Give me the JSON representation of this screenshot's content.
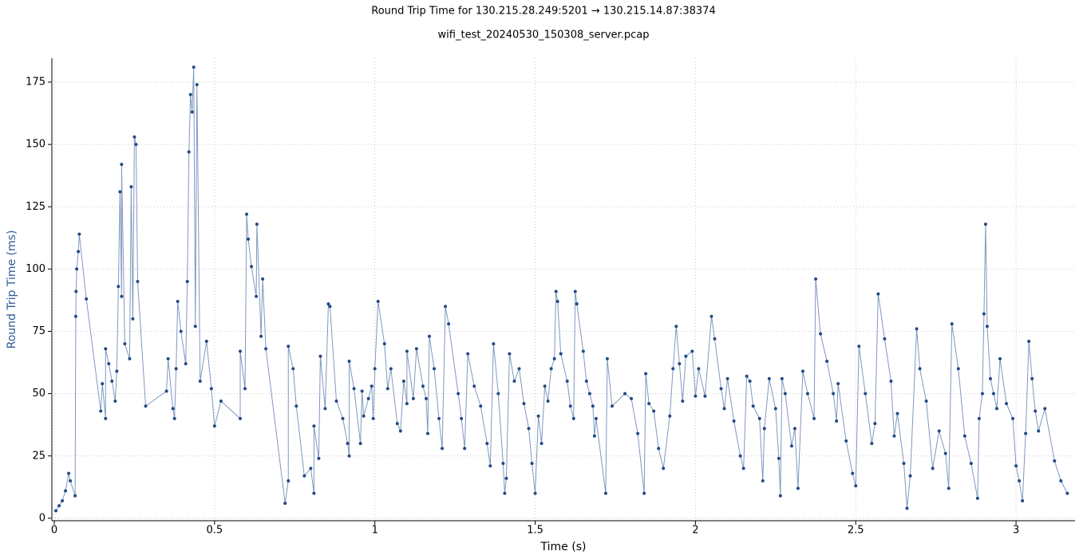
{
  "chart_data": {
    "type": "line",
    "title": "Round Trip Time for 130.215.28.249:5201 → 130.215.14.87:38374",
    "subtitle": "wifi_test_20240530_150308_server.pcap",
    "x_label": "Time (s)",
    "y_label": "Round Trip Time (ms)",
    "xlim": [
      -0.0075,
      3.184
    ],
    "ylim": [
      -1,
      184.6
    ],
    "xticks": [
      0,
      0.5,
      1,
      1.5,
      2,
      2.5,
      3
    ],
    "yticks": [
      0,
      25,
      50,
      75,
      100,
      125,
      150,
      175
    ],
    "grid": true,
    "color": "#234a85",
    "line_color": "#7f98c0",
    "x": [
      0.005,
      0.015,
      0.025,
      0.035,
      0.045,
      0.05,
      0.065,
      0.067,
      0.068,
      0.07,
      0.075,
      0.078,
      0.1,
      0.145,
      0.15,
      0.16,
      0.16,
      0.17,
      0.18,
      0.19,
      0.195,
      0.2,
      0.205,
      0.21,
      0.21,
      0.22,
      0.235,
      0.24,
      0.245,
      0.25,
      0.255,
      0.26,
      0.285,
      0.35,
      0.355,
      0.37,
      0.375,
      0.38,
      0.385,
      0.395,
      0.41,
      0.415,
      0.42,
      0.425,
      0.43,
      0.435,
      0.44,
      0.445,
      0.455,
      0.475,
      0.49,
      0.5,
      0.52,
      0.58,
      0.58,
      0.595,
      0.6,
      0.605,
      0.615,
      0.63,
      0.632,
      0.645,
      0.65,
      0.66,
      0.72,
      0.73,
      0.73,
      0.745,
      0.755,
      0.78,
      0.8,
      0.81,
      0.81,
      0.825,
      0.83,
      0.845,
      0.855,
      0.86,
      0.88,
      0.9,
      0.915,
      0.92,
      0.92,
      0.935,
      0.955,
      0.96,
      0.965,
      0.98,
      0.99,
      0.995,
      1.0,
      1.01,
      1.03,
      1.04,
      1.05,
      1.07,
      1.08,
      1.09,
      1.1,
      1.1,
      1.12,
      1.13,
      1.15,
      1.16,
      1.165,
      1.17,
      1.185,
      1.2,
      1.21,
      1.22,
      1.23,
      1.26,
      1.27,
      1.28,
      1.29,
      1.31,
      1.33,
      1.35,
      1.36,
      1.37,
      1.385,
      1.4,
      1.405,
      1.41,
      1.42,
      1.435,
      1.45,
      1.465,
      1.48,
      1.49,
      1.5,
      1.51,
      1.52,
      1.53,
      1.54,
      1.55,
      1.56,
      1.565,
      1.57,
      1.58,
      1.6,
      1.61,
      1.62,
      1.625,
      1.63,
      1.65,
      1.66,
      1.67,
      1.68,
      1.685,
      1.69,
      1.72,
      1.725,
      1.74,
      1.78,
      1.8,
      1.82,
      1.84,
      1.845,
      1.855,
      1.87,
      1.885,
      1.9,
      1.92,
      1.93,
      1.94,
      1.95,
      1.96,
      1.97,
      1.99,
      2.0,
      2.01,
      2.03,
      2.05,
      2.06,
      2.08,
      2.09,
      2.1,
      2.12,
      2.14,
      2.15,
      2.16,
      2.17,
      2.18,
      2.2,
      2.21,
      2.215,
      2.23,
      2.25,
      2.26,
      2.265,
      2.27,
      2.28,
      2.3,
      2.31,
      2.32,
      2.335,
      2.35,
      2.37,
      2.375,
      2.39,
      2.41,
      2.43,
      2.44,
      2.445,
      2.47,
      2.49,
      2.5,
      2.51,
      2.53,
      2.55,
      2.56,
      2.57,
      2.59,
      2.61,
      2.62,
      2.63,
      2.65,
      2.66,
      2.67,
      2.69,
      2.7,
      2.72,
      2.74,
      2.76,
      2.78,
      2.79,
      2.8,
      2.82,
      2.84,
      2.86,
      2.88,
      2.885,
      2.895,
      2.9,
      2.905,
      2.91,
      2.92,
      2.93,
      2.94,
      2.95,
      2.97,
      2.99,
      3.0,
      3.01,
      3.02,
      3.03,
      3.04,
      3.05,
      3.06,
      3.07,
      3.09,
      3.12,
      3.14,
      3.16
    ],
    "values": [
      3,
      5,
      7,
      11,
      18,
      15,
      9,
      81,
      91,
      100,
      107,
      114,
      88,
      43,
      54,
      40,
      68,
      62,
      55,
      47,
      59,
      93,
      131,
      89,
      142,
      70,
      64,
      133,
      80,
      153,
      150,
      95,
      45,
      51,
      64,
      44,
      40,
      60,
      87,
      75,
      62,
      95,
      147,
      170,
      163,
      181,
      77,
      174,
      55,
      71,
      52,
      37,
      47,
      40,
      67,
      52,
      122,
      112,
      101,
      89,
      118,
      73,
      96,
      68,
      6,
      15,
      69,
      60,
      45,
      17,
      20,
      10,
      37,
      24,
      65,
      44,
      86,
      85,
      47,
      40,
      30,
      25,
      63,
      52,
      30,
      51,
      41,
      48,
      53,
      40,
      60,
      87,
      70,
      52,
      60,
      38,
      35,
      55,
      46,
      67,
      48,
      68,
      53,
      48,
      34,
      73,
      60,
      40,
      28,
      85,
      78,
      50,
      40,
      28,
      66,
      53,
      45,
      30,
      21,
      70,
      50,
      22,
      10,
      16,
      66,
      55,
      60,
      46,
      36,
      22,
      10,
      41,
      30,
      53,
      47,
      60,
      64,
      91,
      87,
      66,
      55,
      45,
      40,
      91,
      86,
      67,
      55,
      50,
      45,
      33,
      40,
      10,
      64,
      45,
      50,
      48,
      34,
      10,
      58,
      46,
      43,
      28,
      20,
      41,
      60,
      77,
      62,
      47,
      65,
      67,
      49,
      60,
      49,
      81,
      72,
      52,
      44,
      56,
      39,
      25,
      20,
      57,
      55,
      45,
      40,
      15,
      36,
      56,
      44,
      24,
      9,
      56,
      50,
      29,
      36,
      12,
      59,
      50,
      40,
      96,
      74,
      63,
      50,
      39,
      54,
      31,
      18,
      13,
      69,
      50,
      30,
      38,
      90,
      72,
      55,
      33,
      42,
      22,
      4,
      17,
      76,
      60,
      47,
      20,
      35,
      26,
      12,
      78,
      60,
      33,
      22,
      8,
      40,
      50,
      82,
      118,
      77,
      56,
      50,
      44,
      64,
      46,
      40,
      21,
      15,
      7,
      34,
      71,
      56,
      43,
      35,
      44,
      23,
      15,
      10
    ]
  }
}
